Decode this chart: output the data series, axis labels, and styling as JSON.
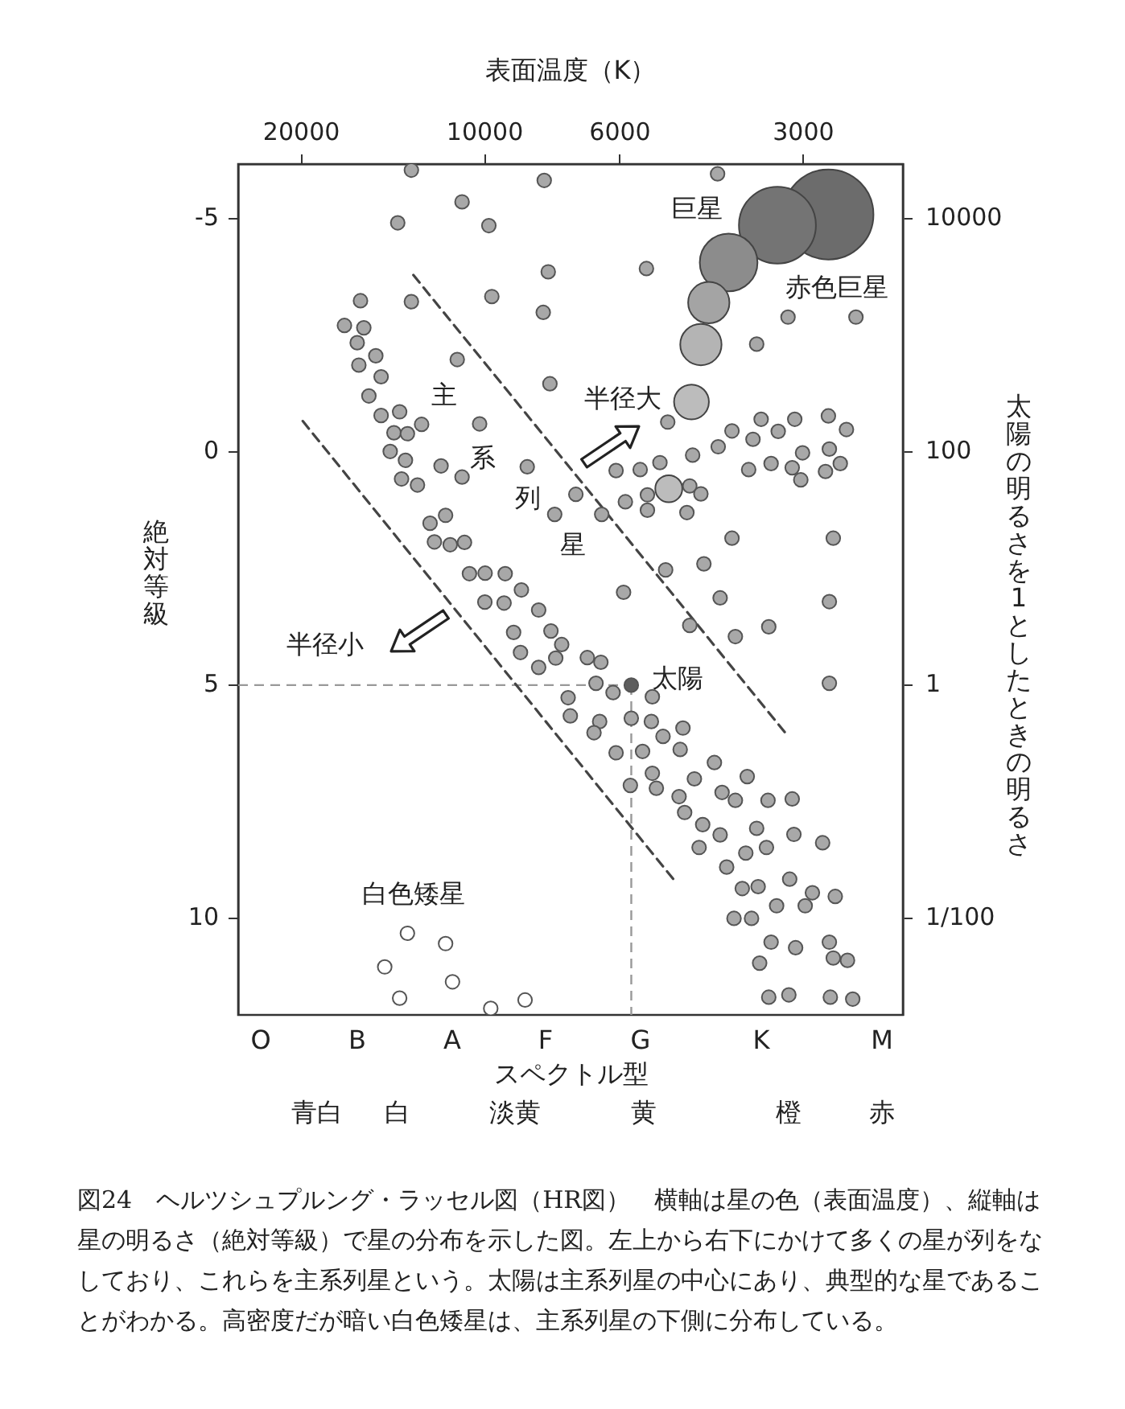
{
  "chart_data": {
    "type": "scatter",
    "xlabel": "表面温度（K）",
    "ylabel": "太陽の明るさを1としたときの明るさ",
    "y2label": "絶対等級",
    "xlim": [
      25400,
      2060
    ],
    "xticks": [
      20000,
      10000,
      6000,
      3000
    ],
    "y2lim": [
      12.07,
      -6.17
    ],
    "y2ticks": [
      -5,
      0,
      5,
      10
    ],
    "ylim": [
      0.00149,
      29400
    ],
    "yticks": [
      10000,
      100,
      1,
      {
        "value": 0.01,
        "label": "1/100"
      }
    ],
    "log": "xy",
    "marker": "circle",
    "series": [
      {
        "type": "scatter",
        "axis": "y2",
        "color": "#a8a8a8",
        "x": [
          13200,
          7990,
          10900,
          13900,
          9850,
          7870,
          16000,
          13200,
          9740,
          8020,
          17000,
          15800,
          16200,
          15100,
          16100,
          11100,
          14800,
          7820,
          15500,
          14800,
          13800,
          14100,
          13400,
          12700,
          10200,
          14300,
          13500,
          11800,
          10900,
          8520,
          13700,
          12900,
          12300,
          11600,
          12100,
          11400,
          10800,
          7680,
          10600,
          9990,
          9260,
          4150,
          5430,
          3580,
          3180,
          2460,
          5010,
          3520,
          3100,
          2730,
          3930,
          3300,
          2550,
          3630,
          4140,
          4560,
          2720,
          3010,
          6090,
          5560,
          5160,
          3690,
          3390,
          3130,
          2610,
          2760,
          3030,
          4610,
          4420,
          5410,
          5880,
          7090,
          6430,
          5410,
          4660,
          3930,
          2680,
          4370,
          5050,
          10000,
          9300,
          8710,
          8160,
          8970,
          7790,
          8740,
          8160,
          7650,
          7480,
          7300,
          7240,
          5920,
          4110,
          2720,
          4610,
          3420,
          3880,
          6790,
          6450,
          6570,
          6160,
          5310,
          2720,
          6480,
          5750,
          5330,
          6620,
          5100,
          4730,
          6090,
          5510,
          4780,
          4200,
          5310,
          3710,
          5770,
          5230,
          4530,
          4800,
          4080,
          3880,
          3430,
          3130,
          4700,
          4390,
          3580,
          4110,
          3110,
          2790,
          4450,
          3730,
          3450,
          4010,
          3780,
          3560,
          3160,
          2900,
          2980,
          2660,
          3320,
          3900,
          3650,
          3390,
          3090,
          2720,
          3540,
          2680,
          2540,
          3420,
          3170,
          2710,
          2490
        ],
        "values": [
          -6.04,
          -5.82,
          -5.36,
          -4.91,
          -4.85,
          -3.86,
          -3.24,
          -3.22,
          -3.33,
          -2.99,
          -2.71,
          -2.66,
          -2.34,
          -2.06,
          -1.86,
          -1.98,
          -1.61,
          -1.46,
          -1.2,
          -0.78,
          -0.86,
          -0.41,
          -0.39,
          -0.59,
          -0.6,
          -0.01,
          0.18,
          0.3,
          0.54,
          0.32,
          0.58,
          0.71,
          1.53,
          1.36,
          1.93,
          1.99,
          1.94,
          1.34,
          2.61,
          2.6,
          2.61,
          -5.96,
          -3.93,
          -2.31,
          -2.89,
          -2.89,
          -0.64,
          -0.7,
          -0.7,
          -0.77,
          -0.45,
          -0.44,
          -0.48,
          -0.27,
          -0.11,
          0.07,
          -0.06,
          0.02,
          0.4,
          0.38,
          0.23,
          0.38,
          0.25,
          0.34,
          0.25,
          0.42,
          0.6,
          0.73,
          0.9,
          0.92,
          1.07,
          0.91,
          1.34,
          1.25,
          1.3,
          1.85,
          1.85,
          2.4,
          2.53,
          3.22,
          3.24,
          2.96,
          3.39,
          3.87,
          3.84,
          4.3,
          4.62,
          4.42,
          4.13,
          5.27,
          5.66,
          3.01,
          3.13,
          3.21,
          3.72,
          3.75,
          3.96,
          4.41,
          4.51,
          4.96,
          5.16,
          5.25,
          4.96,
          5.78,
          5.71,
          5.78,
          6.02,
          6.1,
          5.92,
          6.45,
          6.42,
          6.38,
          6.66,
          6.89,
          6.96,
          7.15,
          7.21,
          7.01,
          7.39,
          7.3,
          7.47,
          7.47,
          7.44,
          7.73,
          7.99,
          8.07,
          8.21,
          8.2,
          8.38,
          8.48,
          8.6,
          8.48,
          8.9,
          9.36,
          9.32,
          9.16,
          9.45,
          9.73,
          9.53,
          9.73,
          10.0,
          10.0,
          10.51,
          10.63,
          10.51,
          10.96,
          10.85,
          10.9,
          11.69,
          11.64,
          11.69,
          11.73
        ]
      },
      {
        "type": "bubble",
        "axis": "y2",
        "colors": [
          "#6c6c6c",
          "#747474",
          "#8c8c8c",
          "#a4a4a4",
          "#b4b4b4",
          "#bcbcbc",
          "#bcbcbc"
        ],
        "x": [
          2730,
          3310,
          3980,
          4290,
          4420,
          4580,
          4990
        ],
        "values": [
          -5.09,
          -4.86,
          -4.06,
          -3.2,
          -2.3,
          -1.07,
          0.79
        ],
        "sizes": [
          1,
          0.73,
          0.41,
          0.21,
          0.21,
          0.15,
          0.09
        ]
      },
      {
        "type": "scatter",
        "axis": "y2",
        "color": "#5e5e5e",
        "x": [
          5750
        ],
        "values": [
          5.0
        ]
      },
      {
        "type": "scatter",
        "axis": "y2",
        "color": "#ffffff",
        "x": [
          13400,
          11600,
          14600,
          11300,
          13800,
          9780,
          8590
        ],
        "values": [
          10.32,
          10.54,
          11.04,
          11.36,
          11.71,
          11.93,
          11.75
        ]
      },
      {
        "type": "line",
        "axis": "y2",
        "color": "#444444",
        "line_style": "dashed",
        "marker": "none",
        "x": [
          13100,
          3210
        ],
        "values": [
          -3.79,
          6.03
        ]
      },
      {
        "type": "line",
        "axis": "y2",
        "color": "#444444",
        "line_style": "dashed",
        "marker": "none",
        "x": [
          19900,
          4870
        ],
        "values": [
          -0.66,
          9.21
        ]
      }
    ],
    "ref_lines": [
      {
        "axis": "y2",
        "value": 5.0,
        "color": "#999999",
        "line_style": "dashed"
      },
      {
        "axis": "x",
        "value": 5750,
        "color": "#999999",
        "line_style": "dashed"
      }
    ],
    "annotations": [
      "巨星",
      "赤色巨星",
      "半径大",
      "主",
      "系",
      "列",
      "星",
      "半径小",
      "白色矮星",
      "O",
      "B",
      "A",
      "F",
      "G",
      "K",
      "M",
      "スペクトル型",
      "青白",
      "白",
      "淡黄",
      "黄",
      "橙",
      "赤",
      {
        "text": "太陽",
        "x": 5750,
        "y": 1
      },
      "図24　ヘルツシュプルング・ラッセル図（HR図）　横軸は星の色（表面温度）、縦軸は星の明るさ（絶対等級）で星の分布を示した図。左上から右下にかけて多くの星が列をなしており、これらを主系列星という。太陽は主系列星の中心にあり、典型的な星であることがわかる。高密度だが暗い白色矮星は、主系列星の下側に分布している。"
    ]
  }
}
